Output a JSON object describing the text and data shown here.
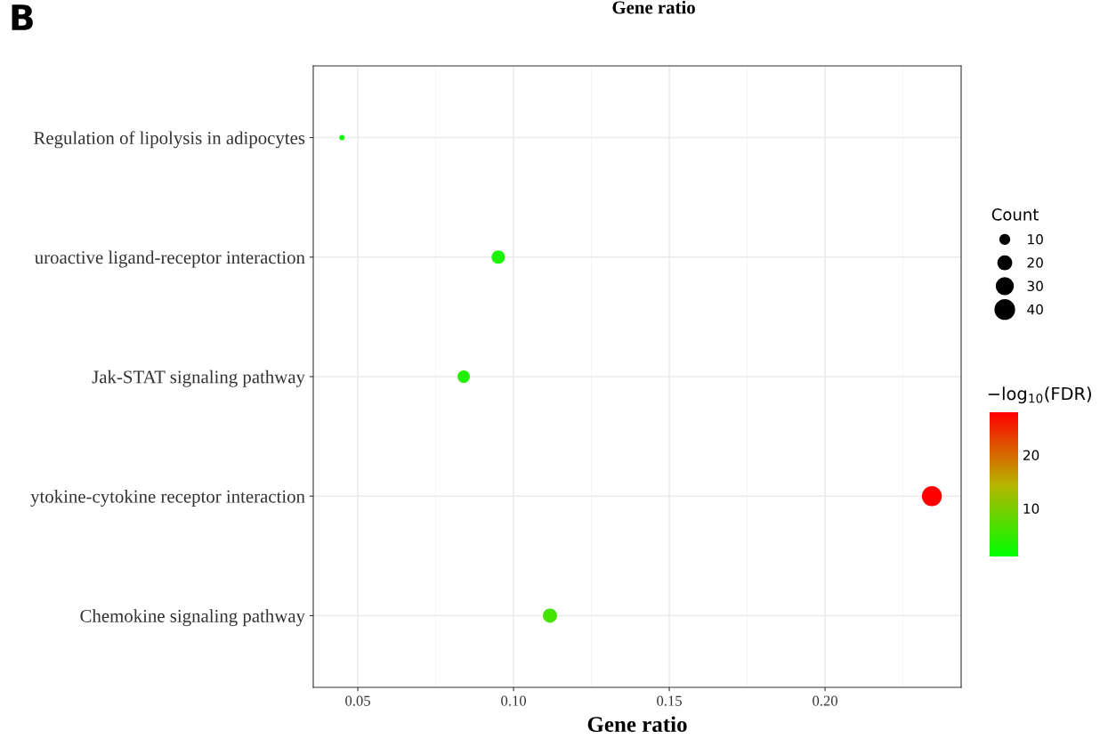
{
  "chart_data": {
    "type": "bubble",
    "title": "Gene ratio",
    "xlabel": "Gene ratio",
    "legend_title": "Count",
    "clabel": "−log$_{10}$(FDR)",
    "annotations": [
      "B"
    ],
    "categories": [
      "Regulation of lipolysis in adipocytes",
      "uroactive ligand-receptor interaction",
      "Jak-STAT signaling pathway",
      "ytokine-cytokine receptor interaction",
      "Chemokine signaling pathway"
    ],
    "values": [
      0.0449,
      0.0951,
      0.084,
      0.2343,
      0.1117
    ],
    "sizes": [
      3,
      19,
      16,
      42,
      21
    ],
    "cvalues": [
      1.5,
      3,
      3.5,
      28,
      6
    ],
    "size_legend": [
      10,
      20,
      30,
      40
    ],
    "orientation": "horizontal",
    "xlim": [
      0.0357,
      0.2437
    ],
    "xticks": [
      {
        "value": 0.05,
        "label": "0.05"
      },
      {
        "value": 0.1,
        "label": "0.10"
      },
      {
        "value": 0.15,
        "label": "0.15"
      },
      {
        "value": 0.2,
        "label": "0.20"
      }
    ],
    "clim": [
      1,
      28
    ],
    "cticks": [
      10,
      20
    ],
    "grid": true
  }
}
